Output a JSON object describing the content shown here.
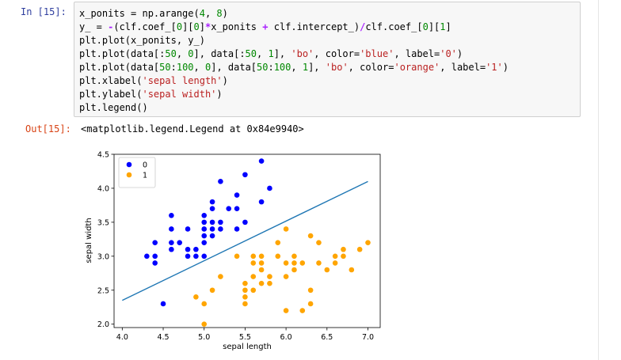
{
  "cell": {
    "in_prompt": "In  [15]:",
    "out_prompt": "Out[15]:",
    "output_text": "<matplotlib.legend.Legend at 0x84e9940>",
    "code_lines": [
      [
        {
          "t": "x_ponits = np.arange(",
          "c": ""
        },
        {
          "t": "4",
          "c": "num"
        },
        {
          "t": ", ",
          "c": ""
        },
        {
          "t": "8",
          "c": "num"
        },
        {
          "t": ")",
          "c": ""
        }
      ],
      [
        {
          "t": "y_ = ",
          "c": ""
        },
        {
          "t": "-",
          "c": "op"
        },
        {
          "t": "(clf.coef_[",
          "c": ""
        },
        {
          "t": "0",
          "c": "num"
        },
        {
          "t": "][",
          "c": ""
        },
        {
          "t": "0",
          "c": "num"
        },
        {
          "t": "]",
          "c": ""
        },
        {
          "t": "*",
          "c": "op"
        },
        {
          "t": "x_ponits ",
          "c": ""
        },
        {
          "t": "+",
          "c": "op"
        },
        {
          "t": " clf.intercept_)",
          "c": ""
        },
        {
          "t": "/",
          "c": "op"
        },
        {
          "t": "clf.coef_[",
          "c": ""
        },
        {
          "t": "0",
          "c": "num"
        },
        {
          "t": "][",
          "c": ""
        },
        {
          "t": "1",
          "c": "num"
        },
        {
          "t": "]",
          "c": ""
        }
      ],
      [
        {
          "t": "plt.plot(x_ponits, y_)",
          "c": ""
        }
      ],
      [
        {
          "t": "plt.plot(data[:",
          "c": ""
        },
        {
          "t": "50",
          "c": "num"
        },
        {
          "t": ", ",
          "c": ""
        },
        {
          "t": "0",
          "c": "num"
        },
        {
          "t": "], data[:",
          "c": ""
        },
        {
          "t": "50",
          "c": "num"
        },
        {
          "t": ", ",
          "c": ""
        },
        {
          "t": "1",
          "c": "num"
        },
        {
          "t": "], ",
          "c": ""
        },
        {
          "t": "'bo'",
          "c": "str"
        },
        {
          "t": ", color=",
          "c": ""
        },
        {
          "t": "'blue'",
          "c": "str"
        },
        {
          "t": ", label=",
          "c": ""
        },
        {
          "t": "'0'",
          "c": "str"
        },
        {
          "t": ")",
          "c": ""
        }
      ],
      [
        {
          "t": "plt.plot(data[",
          "c": ""
        },
        {
          "t": "50",
          "c": "num"
        },
        {
          "t": ":",
          "c": ""
        },
        {
          "t": "100",
          "c": "num"
        },
        {
          "t": ", ",
          "c": ""
        },
        {
          "t": "0",
          "c": "num"
        },
        {
          "t": "], data[",
          "c": ""
        },
        {
          "t": "50",
          "c": "num"
        },
        {
          "t": ":",
          "c": ""
        },
        {
          "t": "100",
          "c": "num"
        },
        {
          "t": ", ",
          "c": ""
        },
        {
          "t": "1",
          "c": "num"
        },
        {
          "t": "], ",
          "c": ""
        },
        {
          "t": "'bo'",
          "c": "str"
        },
        {
          "t": ", color=",
          "c": ""
        },
        {
          "t": "'orange'",
          "c": "str"
        },
        {
          "t": ", label=",
          "c": ""
        },
        {
          "t": "'1'",
          "c": "str"
        },
        {
          "t": ")",
          "c": ""
        }
      ],
      [
        {
          "t": "plt.xlabel(",
          "c": ""
        },
        {
          "t": "'sepal length'",
          "c": "str"
        },
        {
          "t": ")",
          "c": ""
        }
      ],
      [
        {
          "t": "plt.ylabel(",
          "c": ""
        },
        {
          "t": "'sepal width'",
          "c": "str"
        },
        {
          "t": ")",
          "c": ""
        }
      ],
      [
        {
          "t": "plt.legend()",
          "c": ""
        }
      ]
    ]
  },
  "colors": {
    "blue": "#0000ff",
    "orange": "#ffa500",
    "line": "#1f77b4"
  },
  "chart_data": {
    "type": "scatter",
    "xlabel": "sepal length",
    "ylabel": "sepal width",
    "xlim": [
      3.9,
      7.15
    ],
    "ylim": [
      1.95,
      4.5
    ],
    "xticks": [
      "4.0",
      "4.5",
      "5.0",
      "5.5",
      "6.0",
      "6.5",
      "7.0"
    ],
    "yticks": [
      "2.0",
      "2.5",
      "3.0",
      "3.5",
      "4.0",
      "4.5"
    ],
    "legend_position": "top-left",
    "grid": false,
    "series": [
      {
        "name": "0",
        "color": "blue",
        "points": [
          [
            4.3,
            3.0
          ],
          [
            4.4,
            2.9
          ],
          [
            4.4,
            3.0
          ],
          [
            4.4,
            3.2
          ],
          [
            4.5,
            2.3
          ],
          [
            4.6,
            3.1
          ],
          [
            4.6,
            3.2
          ],
          [
            4.6,
            3.4
          ],
          [
            4.6,
            3.6
          ],
          [
            4.7,
            3.2
          ],
          [
            4.8,
            3.0
          ],
          [
            4.8,
            3.1
          ],
          [
            4.8,
            3.4
          ],
          [
            4.9,
            3.0
          ],
          [
            4.9,
            3.1
          ],
          [
            5.0,
            3.0
          ],
          [
            5.0,
            3.2
          ],
          [
            5.0,
            3.3
          ],
          [
            5.0,
            3.4
          ],
          [
            5.0,
            3.5
          ],
          [
            5.0,
            3.6
          ],
          [
            5.1,
            3.3
          ],
          [
            5.1,
            3.4
          ],
          [
            5.1,
            3.5
          ],
          [
            5.1,
            3.7
          ],
          [
            5.1,
            3.8
          ],
          [
            5.2,
            3.4
          ],
          [
            5.2,
            3.5
          ],
          [
            5.2,
            4.1
          ],
          [
            5.3,
            3.7
          ],
          [
            5.4,
            3.4
          ],
          [
            5.4,
            3.7
          ],
          [
            5.4,
            3.9
          ],
          [
            5.5,
            3.5
          ],
          [
            5.5,
            4.2
          ],
          [
            5.7,
            3.8
          ],
          [
            5.7,
            4.4
          ],
          [
            5.8,
            4.0
          ]
        ]
      },
      {
        "name": "1",
        "color": "orange",
        "points": [
          [
            4.9,
            2.4
          ],
          [
            5.0,
            2.0
          ],
          [
            5.0,
            2.3
          ],
          [
            5.1,
            2.5
          ],
          [
            5.2,
            2.7
          ],
          [
            5.4,
            3.0
          ],
          [
            5.5,
            2.3
          ],
          [
            5.5,
            2.4
          ],
          [
            5.5,
            2.5
          ],
          [
            5.5,
            2.6
          ],
          [
            5.6,
            2.5
          ],
          [
            5.6,
            2.7
          ],
          [
            5.6,
            2.9
          ],
          [
            5.6,
            3.0
          ],
          [
            5.7,
            2.6
          ],
          [
            5.7,
            2.8
          ],
          [
            5.7,
            2.9
          ],
          [
            5.7,
            3.0
          ],
          [
            5.8,
            2.6
          ],
          [
            5.8,
            2.7
          ],
          [
            5.9,
            3.0
          ],
          [
            5.9,
            3.2
          ],
          [
            6.0,
            2.2
          ],
          [
            6.0,
            2.7
          ],
          [
            6.0,
            2.9
          ],
          [
            6.0,
            3.4
          ],
          [
            6.1,
            2.8
          ],
          [
            6.1,
            2.9
          ],
          [
            6.1,
            3.0
          ],
          [
            6.2,
            2.2
          ],
          [
            6.2,
            2.9
          ],
          [
            6.3,
            2.3
          ],
          [
            6.3,
            2.5
          ],
          [
            6.3,
            3.3
          ],
          [
            6.4,
            2.9
          ],
          [
            6.4,
            3.2
          ],
          [
            6.5,
            2.8
          ],
          [
            6.6,
            2.9
          ],
          [
            6.6,
            3.0
          ],
          [
            6.7,
            3.0
          ],
          [
            6.7,
            3.1
          ],
          [
            6.8,
            2.8
          ],
          [
            6.9,
            3.1
          ],
          [
            7.0,
            3.2
          ]
        ]
      }
    ],
    "line": {
      "x": [
        4.0,
        7.0
      ],
      "y": [
        2.35,
        4.1
      ]
    }
  }
}
